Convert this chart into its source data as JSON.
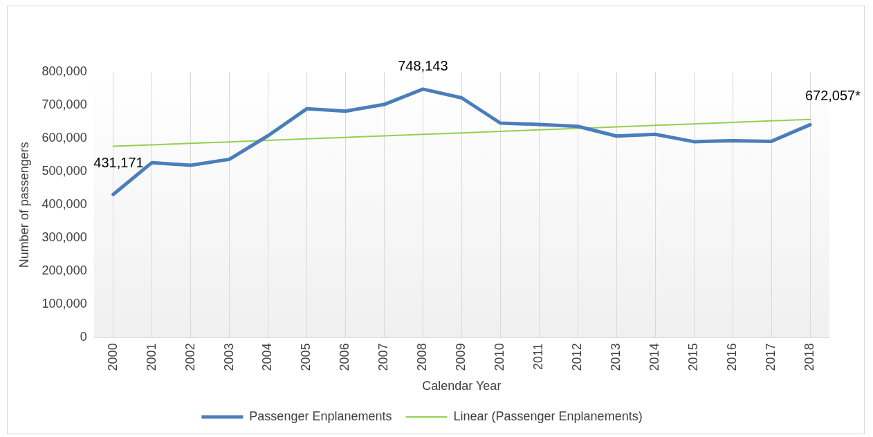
{
  "chart_data": {
    "type": "line",
    "xlabel": "Calendar Year",
    "ylabel": "Number of passengers",
    "categories": [
      "2000",
      "2001",
      "2002",
      "2003",
      "2004",
      "2005",
      "2006",
      "2007",
      "2008",
      "2009",
      "2010",
      "2011",
      "2012",
      "2013",
      "2014",
      "2015",
      "2016",
      "2017",
      "2018"
    ],
    "series": [
      {
        "name": "Passenger Enplanements",
        "color": "#4a7ebb",
        "values": [
          431171,
          527000,
          519000,
          537000,
          608000,
          689000,
          682000,
          702000,
          748143,
          722000,
          646000,
          642000,
          636000,
          607000,
          612000,
          590000,
          593000,
          591000,
          641000
        ],
        "value_labels": [
          "431,171",
          null,
          null,
          null,
          null,
          null,
          null,
          null,
          "748,143",
          null,
          null,
          null,
          null,
          null,
          null,
          null,
          null,
          null,
          null
        ]
      },
      {
        "name": "Linear (Passenger Enplanements)",
        "color": "#92d050",
        "type": "line",
        "values": [
          576000,
          580500,
          585000,
          589500,
          594000,
          598500,
          603000,
          607500,
          612000,
          616500,
          621000,
          625500,
          630000,
          634500,
          639000,
          643500,
          648000,
          652500,
          657000
        ]
      }
    ],
    "annotations": [
      "672,057*"
    ],
    "ylim": [
      0,
      800000
    ],
    "yticks": [
      {
        "value": 0,
        "label": "0"
      },
      {
        "value": 100000,
        "label": "100,000"
      },
      {
        "value": 200000,
        "label": "200,000"
      },
      {
        "value": 300000,
        "label": "300,000"
      },
      {
        "value": 400000,
        "label": "400,000"
      },
      {
        "value": 500000,
        "label": "500,000"
      },
      {
        "value": 600000,
        "label": "600,000"
      },
      {
        "value": 700000,
        "label": "700,000"
      },
      {
        "value": 800000,
        "label": "800,000"
      }
    ],
    "grid": "x",
    "legend": "bottom",
    "marker": "none",
    "line_style": "solid"
  }
}
